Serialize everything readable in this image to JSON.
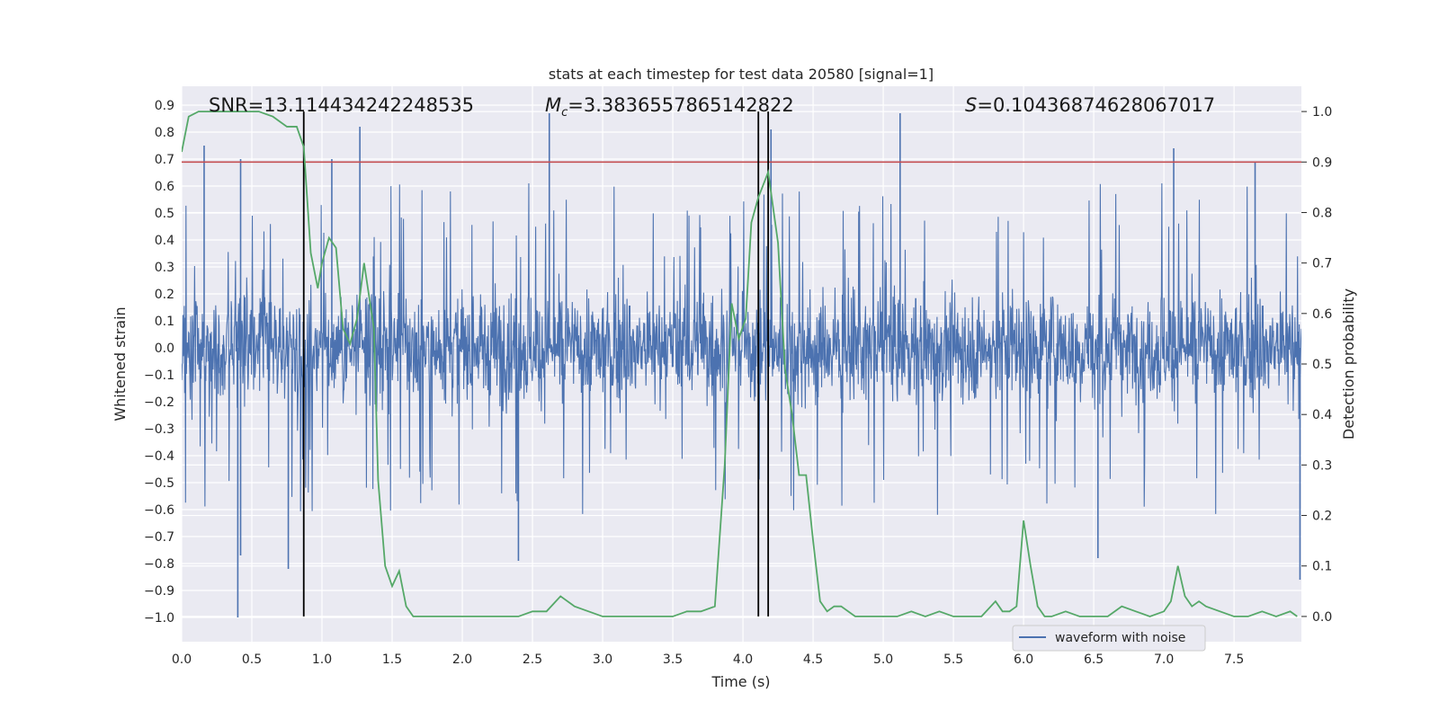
{
  "chart_data": {
    "type": "line",
    "title": "stats at each timestep for test data 20580 [signal=1]",
    "xlabel": "Time (s)",
    "ylabel": "Whitened strain",
    "y2label": "Detection probability",
    "xlim": [
      0,
      7.98
    ],
    "ylim": [
      -1.09,
      0.97
    ],
    "y2lim": [
      -0.05,
      1.05
    ],
    "xticks": [
      "0.0",
      "0.5",
      "1.0",
      "1.5",
      "2.0",
      "2.5",
      "3.0",
      "3.5",
      "4.0",
      "4.5",
      "5.0",
      "5.5",
      "6.0",
      "6.5",
      "7.0",
      "7.5"
    ],
    "yticks": [
      "0.9",
      "0.8",
      "0.7",
      "0.6",
      "0.5",
      "0.4",
      "0.3",
      "0.2",
      "0.1",
      "0.0",
      "−0.1",
      "−0.2",
      "−0.3",
      "−0.4",
      "−0.5",
      "−0.6",
      "−0.7",
      "−0.8",
      "−0.9",
      "−1.0"
    ],
    "y2ticks": [
      "1.0",
      "0.9",
      "0.8",
      "0.7",
      "0.6",
      "0.5",
      "0.4",
      "0.3",
      "0.2",
      "0.1",
      "0.0"
    ],
    "grid": true,
    "legend_position": "bottom-right",
    "annotations": {
      "snr": "SNR=13.114434242248535",
      "mc_symbol": "M",
      "mc_sub": "c",
      "mc_value": "=3.3836557865142822",
      "s_symbol": "S",
      "s_value": "=0.10436874628067017"
    },
    "threshold": 0.9,
    "vertical_lines": [
      0.87,
      4.11,
      4.18
    ],
    "series": [
      {
        "name": "waveform with noise",
        "kind": "noisy-strain",
        "envelope_upper": 0.5,
        "envelope_lower": -0.5,
        "peaks_upper": [
          [
            0.16,
            0.75
          ],
          [
            0.42,
            0.7
          ],
          [
            1.07,
            0.7
          ],
          [
            1.27,
            0.82
          ],
          [
            2.62,
            0.87
          ],
          [
            4.2,
            0.81
          ],
          [
            5.12,
            0.87
          ],
          [
            7.07,
            0.74
          ],
          [
            7.65,
            0.69
          ]
        ],
        "peaks_lower": [
          [
            0.4,
            -1.0
          ],
          [
            0.42,
            -0.77
          ],
          [
            0.76,
            -0.82
          ],
          [
            2.4,
            -0.79
          ],
          [
            6.53,
            -0.78
          ],
          [
            7.97,
            -0.86
          ]
        ]
      },
      {
        "name": "Detection probability",
        "kind": "probability",
        "x": [
          0,
          0.05,
          0.12,
          0.3,
          0.55,
          0.65,
          0.75,
          0.82,
          0.87,
          0.92,
          0.97,
          1.0,
          1.05,
          1.1,
          1.15,
          1.2,
          1.25,
          1.3,
          1.37,
          1.4,
          1.45,
          1.5,
          1.55,
          1.6,
          1.65,
          1.8,
          2.0,
          2.2,
          2.4,
          2.5,
          2.6,
          2.7,
          2.8,
          2.9,
          3.0,
          3.1,
          3.3,
          3.5,
          3.6,
          3.7,
          3.8,
          3.87,
          3.92,
          3.97,
          4.02,
          4.06,
          4.11,
          4.18,
          4.25,
          4.3,
          4.35,
          4.4,
          4.45,
          4.5,
          4.55,
          4.6,
          4.65,
          4.7,
          4.8,
          4.9,
          5.0,
          5.1,
          5.2,
          5.3,
          5.4,
          5.5,
          5.6,
          5.7,
          5.8,
          5.85,
          5.9,
          5.95,
          6.0,
          6.05,
          6.1,
          6.15,
          6.2,
          6.3,
          6.4,
          6.5,
          6.6,
          6.7,
          6.8,
          6.9,
          7.0,
          7.05,
          7.1,
          7.15,
          7.2,
          7.25,
          7.3,
          7.4,
          7.5,
          7.6,
          7.7,
          7.8,
          7.9,
          7.95
        ],
        "y": [
          0.92,
          0.99,
          1.0,
          1.0,
          1.0,
          0.99,
          0.97,
          0.97,
          0.93,
          0.72,
          0.65,
          0.7,
          0.75,
          0.73,
          0.57,
          0.54,
          0.59,
          0.7,
          0.57,
          0.27,
          0.1,
          0.06,
          0.09,
          0.02,
          0.0,
          0.0,
          0.0,
          0.0,
          0.0,
          0.01,
          0.01,
          0.04,
          0.02,
          0.01,
          0.0,
          0.0,
          0.0,
          0.0,
          0.01,
          0.01,
          0.02,
          0.3,
          0.62,
          0.55,
          0.59,
          0.78,
          0.83,
          0.88,
          0.74,
          0.49,
          0.4,
          0.28,
          0.28,
          0.15,
          0.03,
          0.01,
          0.02,
          0.02,
          0.0,
          0.0,
          0.0,
          0.0,
          0.01,
          0.0,
          0.01,
          0.0,
          0.0,
          0.0,
          0.03,
          0.01,
          0.01,
          0.02,
          0.19,
          0.1,
          0.02,
          0.0,
          0.0,
          0.01,
          0.0,
          0.0,
          0.0,
          0.02,
          0.01,
          0.0,
          0.01,
          0.03,
          0.1,
          0.04,
          0.02,
          0.03,
          0.02,
          0.01,
          0.0,
          0.0,
          0.01,
          0.0,
          0.01,
          0.0
        ]
      }
    ],
    "colors": {
      "background": "#EAEAF2",
      "grid": "#FFFFFF",
      "strain": "#4C72B0",
      "probability": "#55A868",
      "threshold": "#C44E52",
      "vline": "#000000",
      "text": "#262626"
    }
  }
}
